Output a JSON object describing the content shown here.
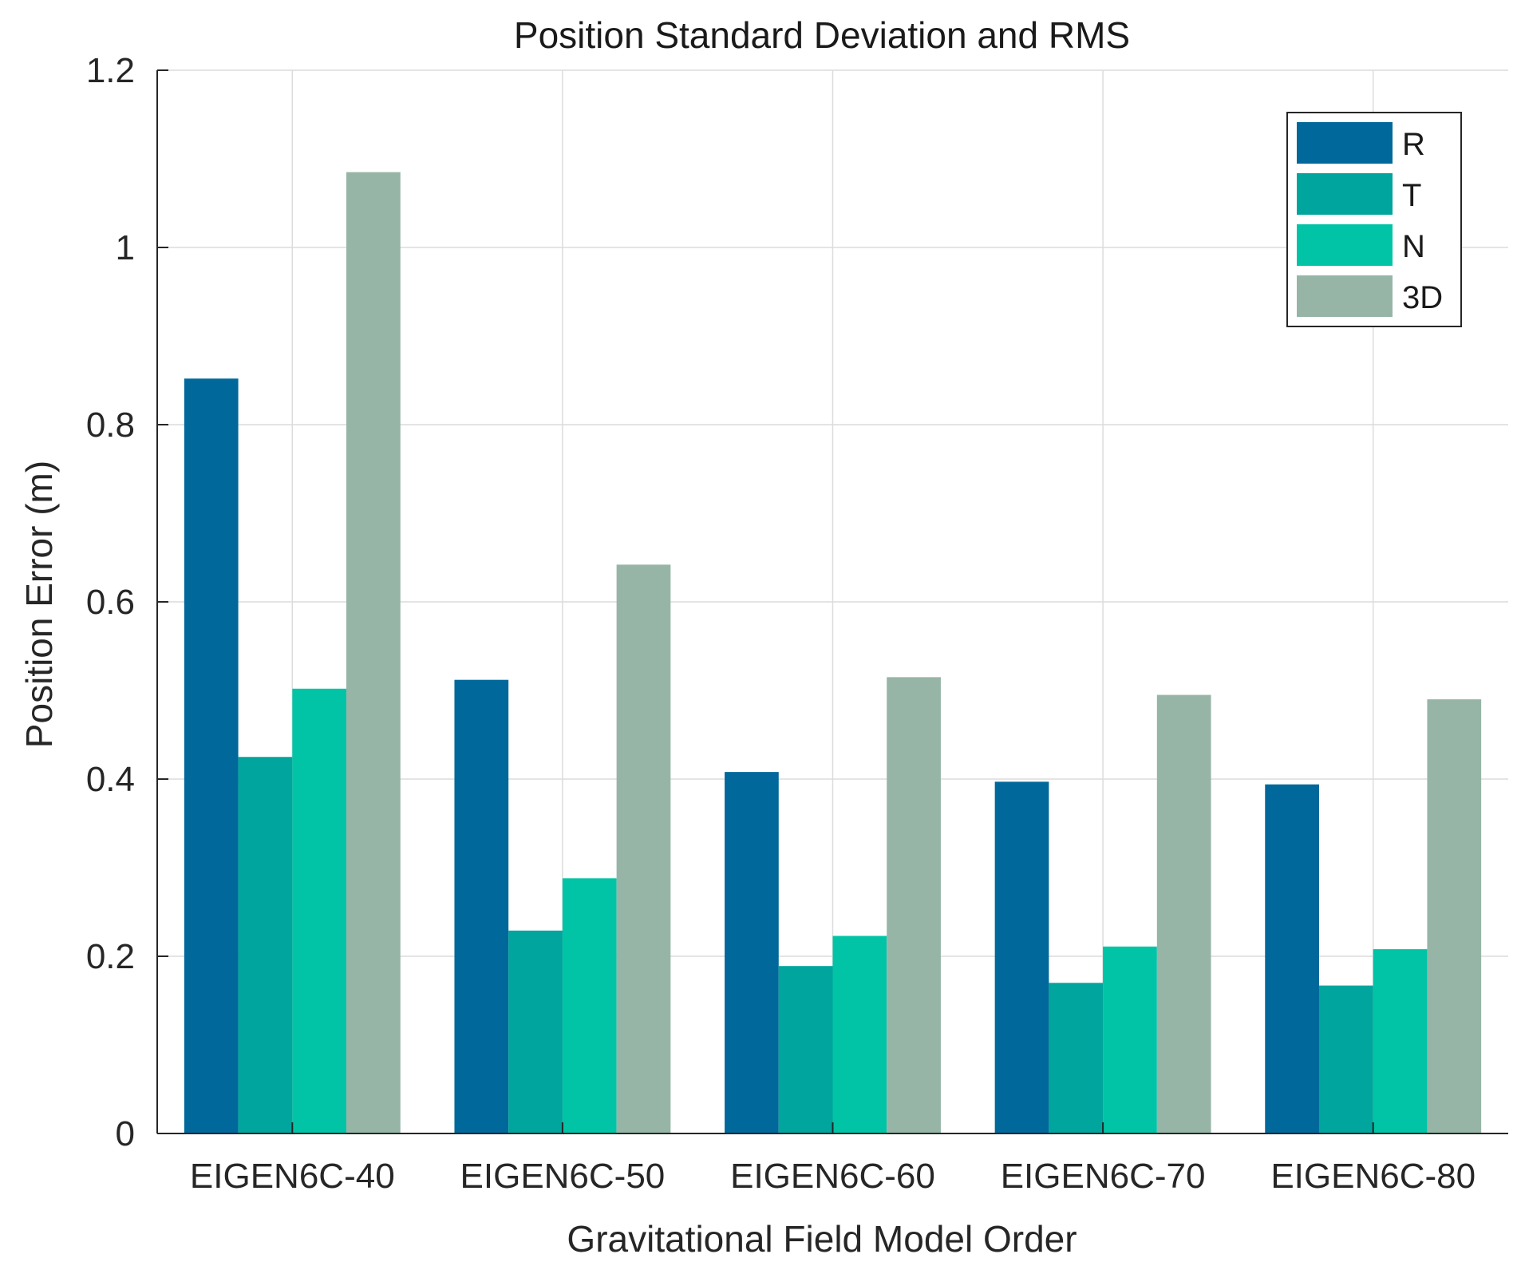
{
  "chart_data": {
    "type": "bar",
    "title": "Position Standard Deviation and RMS",
    "xlabel": "Gravitational Field Model Order",
    "ylabel": "Position Error (m)",
    "categories": [
      "EIGEN6C-40",
      "EIGEN6C-50",
      "EIGEN6C-60",
      "EIGEN6C-70",
      "EIGEN6C-80"
    ],
    "ylim": [
      0,
      1.2
    ],
    "yticks": [
      0,
      0.2,
      0.4,
      0.6,
      0.8,
      1,
      1.2
    ],
    "ytick_labels": [
      "0",
      "0.2",
      "0.4",
      "0.6",
      "0.8",
      "1",
      "1.2"
    ],
    "grid": true,
    "legend_position": "top-right",
    "series": [
      {
        "name": "R",
        "color": "#00689A",
        "values": [
          0.852,
          0.512,
          0.408,
          0.397,
          0.394
        ]
      },
      {
        "name": "T",
        "color": "#00A59D",
        "values": [
          0.425,
          0.229,
          0.189,
          0.17,
          0.167
        ]
      },
      {
        "name": "N",
        "color": "#00C4A5",
        "values": [
          0.502,
          0.288,
          0.223,
          0.211,
          0.208
        ]
      },
      {
        "name": "3D",
        "color": "#96B5A6",
        "values": [
          1.085,
          0.642,
          0.515,
          0.495,
          0.49
        ]
      }
    ]
  }
}
